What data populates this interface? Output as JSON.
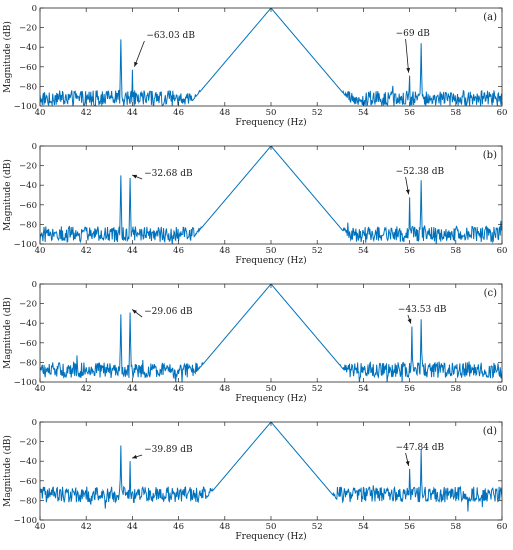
{
  "chart_data": [
    {
      "type": "line",
      "panel_label": "(a)",
      "xlabel": "Frequency (Hz)",
      "ylabel": "Magnitude (dB)",
      "xlim": [
        40,
        60
      ],
      "ylim": [
        -100,
        0
      ],
      "xticks": [
        "40",
        "42",
        "44",
        "46",
        "48",
        "50",
        "52",
        "54",
        "56",
        "58",
        "60"
      ],
      "yticks": [
        "0",
        "−20",
        "−40",
        "−60",
        "−80",
        "−100"
      ],
      "grid": false,
      "color": "#0072BD",
      "noise_floor": -92,
      "peaks": [
        {
          "x": 43.5,
          "y": -32
        },
        {
          "x": 44.0,
          "y": -63
        },
        {
          "x": 50.0,
          "y": 0
        },
        {
          "x": 56.0,
          "y": -69
        },
        {
          "x": 56.5,
          "y": -36
        }
      ],
      "annotations": [
        {
          "text": "−63.03 dB",
          "x": 44.0,
          "y": -63.03
        },
        {
          "text": "−69 dB",
          "x": 56.0,
          "y": -69
        }
      ]
    },
    {
      "type": "line",
      "panel_label": "(b)",
      "xlabel": "Frequency (Hz)",
      "ylabel": "Magnitude (dB)",
      "xlim": [
        40,
        60
      ],
      "ylim": [
        -100,
        0
      ],
      "xticks": [
        "40",
        "42",
        "44",
        "46",
        "48",
        "50",
        "52",
        "54",
        "56",
        "58",
        "60"
      ],
      "yticks": [
        "0",
        "−20",
        "−40",
        "−60",
        "−80",
        "−100"
      ],
      "grid": false,
      "color": "#0072BD",
      "noise_floor": -90,
      "peaks": [
        {
          "x": 43.5,
          "y": -30
        },
        {
          "x": 43.9,
          "y": -32.68
        },
        {
          "x": 50.0,
          "y": 0
        },
        {
          "x": 56.0,
          "y": -52.38
        },
        {
          "x": 56.5,
          "y": -35
        }
      ],
      "annotations": [
        {
          "text": "−32.68 dB",
          "x": 43.9,
          "y": -32.68
        },
        {
          "text": "−52.38 dB",
          "x": 56.0,
          "y": -52.38
        }
      ]
    },
    {
      "type": "line",
      "panel_label": "(c)",
      "xlabel": "Frequency (Hz)",
      "ylabel": "Magnitude (dB)",
      "xlim": [
        40,
        60
      ],
      "ylim": [
        -100,
        0
      ],
      "xticks": [
        "40",
        "42",
        "44",
        "46",
        "48",
        "50",
        "52",
        "54",
        "56",
        "58",
        "60"
      ],
      "yticks": [
        "0",
        "−20",
        "−40",
        "−60",
        "−80",
        "−100"
      ],
      "grid": false,
      "color": "#0072BD",
      "noise_floor": -88,
      "peaks": [
        {
          "x": 43.5,
          "y": -31
        },
        {
          "x": 43.9,
          "y": -29.06
        },
        {
          "x": 50.0,
          "y": 0
        },
        {
          "x": 56.1,
          "y": -43.53
        },
        {
          "x": 56.5,
          "y": -36
        }
      ],
      "annotations": [
        {
          "text": "−29.06 dB",
          "x": 43.9,
          "y": -29.06
        },
        {
          "text": "−43.53 dB",
          "x": 56.1,
          "y": -43.53
        }
      ]
    },
    {
      "type": "line",
      "panel_label": "(d)",
      "xlabel": "Frequency (Hz)",
      "ylabel": "Magnitude (dB)",
      "xlim": [
        40,
        60
      ],
      "ylim": [
        -100,
        0
      ],
      "xticks": [
        "40",
        "42",
        "44",
        "46",
        "48",
        "50",
        "52",
        "54",
        "56",
        "58",
        "60"
      ],
      "yticks": [
        "0",
        "−20",
        "−40",
        "−60",
        "−80",
        "−100"
      ],
      "grid": false,
      "color": "#0072BD",
      "noise_floor": -74,
      "peaks": [
        {
          "x": 43.5,
          "y": -24
        },
        {
          "x": 43.9,
          "y": -39.89
        },
        {
          "x": 50.0,
          "y": 0
        },
        {
          "x": 56.0,
          "y": -47.84
        },
        {
          "x": 56.5,
          "y": -28
        }
      ],
      "annotations": [
        {
          "text": "−39.89 dB",
          "x": 43.9,
          "y": -39.89
        },
        {
          "text": "−47.84 dB",
          "x": 56.0,
          "y": -47.84
        }
      ]
    }
  ]
}
